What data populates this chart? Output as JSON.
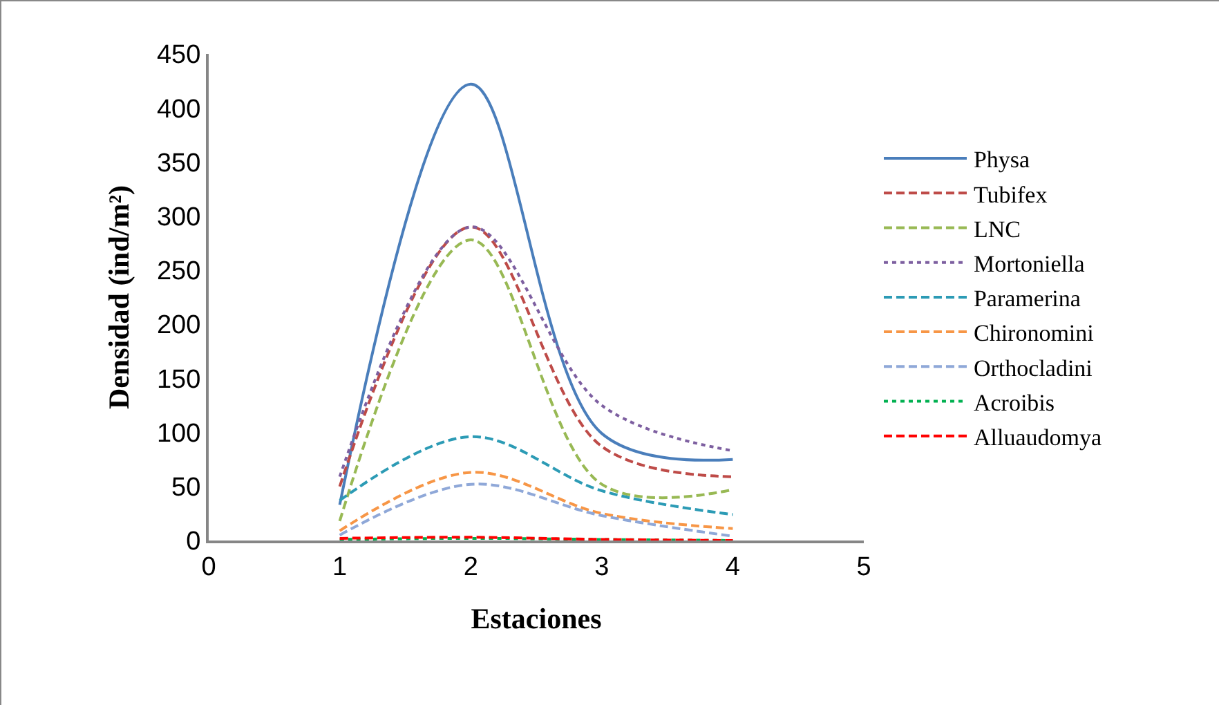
{
  "chart_data": {
    "type": "line",
    "xlabel": "Estaciones",
    "ylabel": "Densidad (ind/m²)",
    "x": [
      1,
      2,
      3,
      4
    ],
    "xlim": [
      0,
      5
    ],
    "xticks": [
      0,
      1,
      2,
      3,
      4,
      5
    ],
    "ylim": [
      0,
      450
    ],
    "yticks": [
      0,
      50,
      100,
      150,
      200,
      250,
      300,
      350,
      400,
      450
    ],
    "grid": false,
    "legend": "right",
    "marker": "none",
    "series": [
      {
        "name": "Physa",
        "color": "#4a7ebb",
        "line_style": "solid",
        "values": [
          33,
          422,
          99,
          75
        ]
      },
      {
        "name": "Tubifex",
        "color": "#be4b48",
        "line_style": "dashed",
        "values": [
          50,
          290,
          87,
          59
        ]
      },
      {
        "name": "LNC",
        "color": "#98b954",
        "line_style": "dashed",
        "values": [
          18,
          278,
          52,
          47
        ]
      },
      {
        "name": "Mortoniella",
        "color": "#7d5fa0",
        "line_style": "dotted",
        "values": [
          59,
          290,
          125,
          83
        ]
      },
      {
        "name": "Paramerina",
        "color": "#2c9bb5",
        "line_style": "dashed",
        "values": [
          37,
          96,
          46,
          24
        ]
      },
      {
        "name": "Chironomini",
        "color": "#f79646",
        "line_style": "dashed",
        "values": [
          9,
          63,
          25,
          11
        ]
      },
      {
        "name": "Orthocladini",
        "color": "#8fa8d8",
        "line_style": "dashed",
        "values": [
          5,
          52,
          23,
          4
        ]
      },
      {
        "name": "Acroibis",
        "color": "#00b050",
        "line_style": "dotted",
        "values": [
          1,
          2,
          1,
          0
        ]
      },
      {
        "name": "Alluaudomya",
        "color": "#ff0000",
        "line_style": "dashed",
        "values": [
          2,
          3,
          1,
          0
        ]
      }
    ]
  }
}
